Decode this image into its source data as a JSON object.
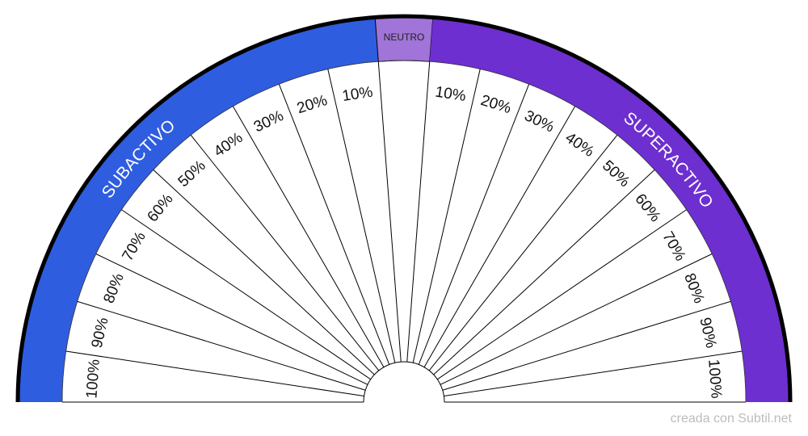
{
  "pendulum_chart": {
    "neutral_label": "NEUTRO",
    "left_label": "SUBACTIVO",
    "right_label": "SUPERACTIVO",
    "left_sectors": [
      "10%",
      "20%",
      "30%",
      "40%",
      "50%",
      "60%",
      "70%",
      "80%",
      "90%",
      "100%"
    ],
    "right_sectors": [
      "10%",
      "20%",
      "30%",
      "40%",
      "50%",
      "60%",
      "70%",
      "80%",
      "90%",
      "100%"
    ],
    "colors": {
      "subactivo": "#2f5de0",
      "neutro": "#a074d8",
      "superactivo": "#6d2fcf",
      "outline": "#000000",
      "lines": "#000000"
    }
  },
  "footer": {
    "credit": "creada con Subtil.net"
  }
}
